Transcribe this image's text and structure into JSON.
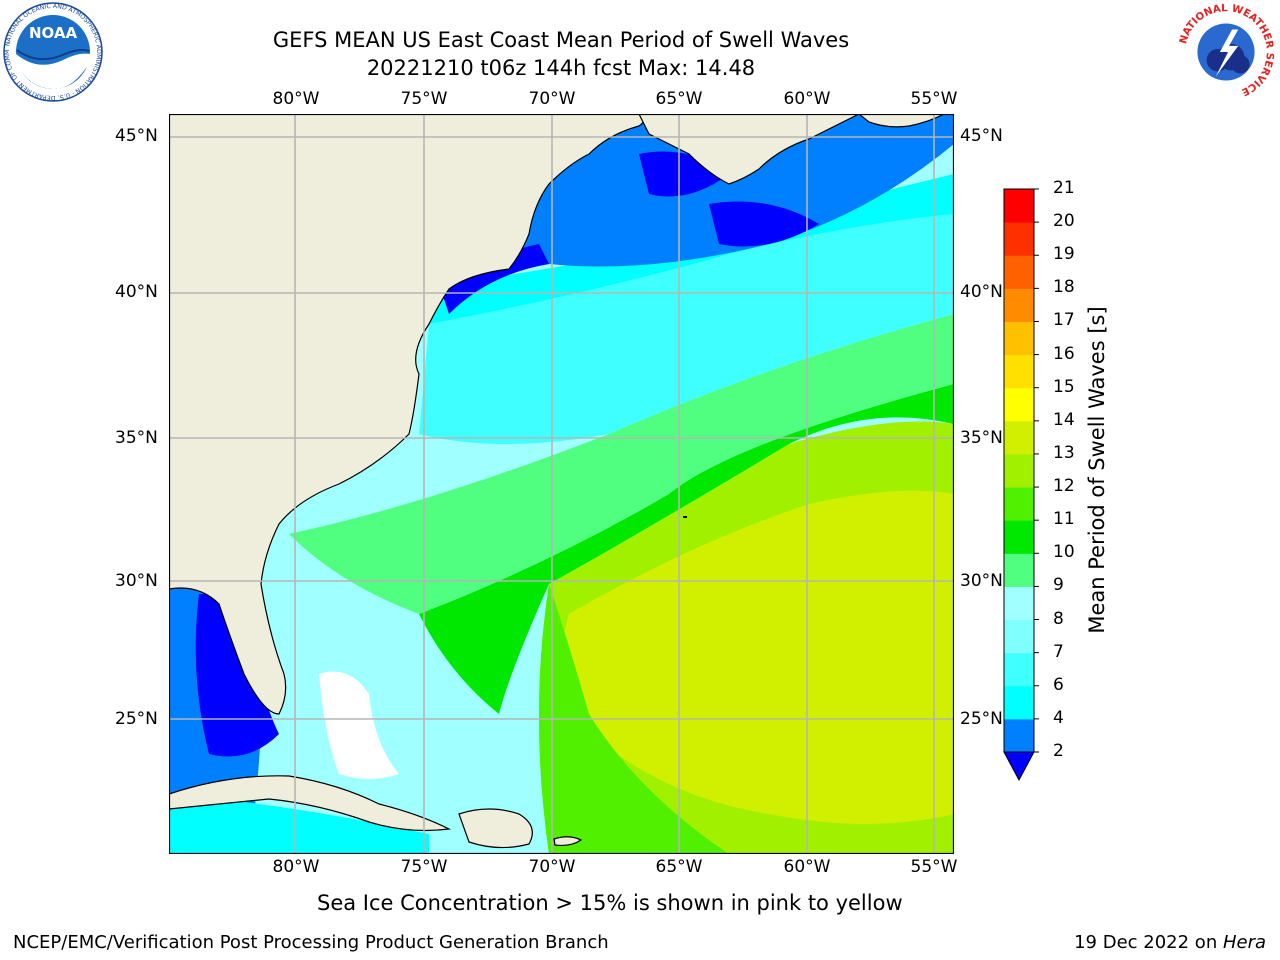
{
  "title": {
    "line1": "GEFS MEAN US East Coast Mean Period of Swell Waves",
    "line2": "20221210 t06z 144h fcst   Max: 14.48"
  },
  "map": {
    "lon_labels": [
      "80°W",
      "75°W",
      "70°W",
      "65°W",
      "60°W",
      "55°W"
    ],
    "lat_labels": [
      "45°N",
      "40°N",
      "35°N",
      "30°N",
      "25°N"
    ],
    "colors": {
      "land": "#efeddc",
      "grid": "#b5b5b5",
      "coast": "#000000",
      "missing": "#ffffff"
    }
  },
  "colorbar": {
    "label": "Mean Period of Swell Waves [s]",
    "ticks": [
      "2",
      "4",
      "6",
      "7",
      "8",
      "9",
      "10",
      "11",
      "12",
      "13",
      "14",
      "15",
      "16",
      "17",
      "18",
      "19",
      "20",
      "21"
    ],
    "colors": [
      "#0000ff",
      "#0080ff",
      "#00ffff",
      "#40ffff",
      "#80ffff",
      "#a0ffff",
      "#50ff80",
      "#00e800",
      "#50f000",
      "#a0f000",
      "#d0f000",
      "#ffff00",
      "#ffe000",
      "#ffc000",
      "#ff8c00",
      "#ff6000",
      "#ff3000",
      "#ff0000"
    ]
  },
  "footer": {
    "note": "Sea Ice Concentration > 15% is shown in pink to yellow",
    "left": "NCEP/EMC/Verification Post Processing Product Generation Branch",
    "right_date": "19 Dec 2022 on ",
    "right_machine": "Hera"
  },
  "logos": {
    "noaa": "NOAA",
    "noaa_ring": "NATIONAL OCEANIC AND ATMOSPHERIC ADMINISTRATION · U.S. DEPARTMENT OF COMMERCE",
    "nws_ring": "NATIONAL WEATHER SERVICE"
  }
}
